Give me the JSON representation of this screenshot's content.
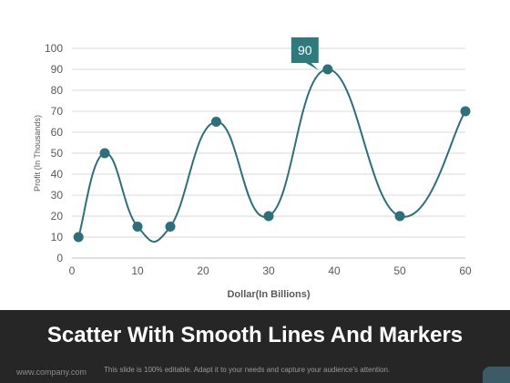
{
  "chart_data": {
    "type": "scatter",
    "smooth": true,
    "markers": true,
    "x": [
      1,
      5,
      10,
      15,
      22,
      30,
      39,
      50,
      60
    ],
    "y": [
      10,
      50,
      15,
      15,
      65,
      20,
      90,
      20,
      70
    ],
    "xlabel": "Dollar(In Billions)",
    "ylabel": "Profit  (In Thousands)",
    "xlim": [
      0,
      60
    ],
    "ylim": [
      0,
      100
    ],
    "x_ticks": [
      "0",
      "10",
      "20",
      "30",
      "40",
      "50",
      "60"
    ],
    "y_ticks": [
      "0",
      "10",
      "20",
      "30",
      "40",
      "50",
      "60",
      "70",
      "80",
      "90",
      "100"
    ],
    "grid": true,
    "callout": "90",
    "series_color": "#2e6f7a",
    "callout_color": "#2e7a7d"
  },
  "footer": {
    "title": "Scatter With Smooth Lines And Markers",
    "site": "www.company.com",
    "note": "This slide is 100% editable. Adapt it to your needs and capture your audience's attention."
  }
}
